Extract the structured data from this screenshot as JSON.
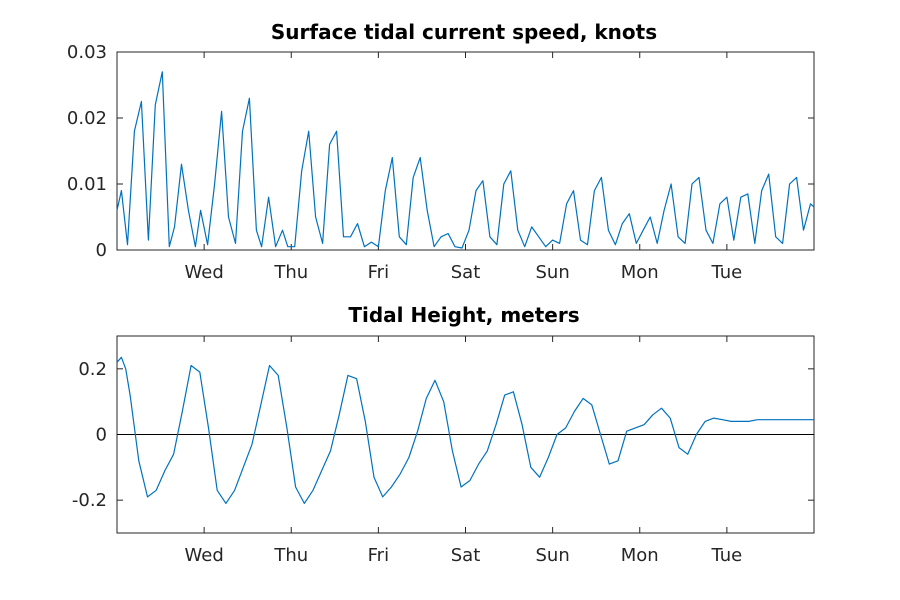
{
  "chart_data": [
    {
      "type": "line",
      "title": "Surface tidal current speed, knots",
      "xlabel": "",
      "ylabel": "",
      "x_ticks": [
        "Wed",
        "Thu",
        "Fri",
        "Sat",
        "Sun",
        "Mon",
        "Tue"
      ],
      "y_ticks": [
        "0",
        "0.01",
        "0.02",
        "0.03"
      ],
      "xlim": [
        0,
        8
      ],
      "ylim": [
        0,
        0.03
      ],
      "grid": false,
      "reference_line": null,
      "series": [
        {
          "color": "#0072BD",
          "x": [
            0,
            0.05,
            0.12,
            0.2,
            0.28,
            0.36,
            0.44,
            0.52,
            0.6,
            0.66,
            0.74,
            0.82,
            0.9,
            0.96,
            1.04,
            1.12,
            1.2,
            1.28,
            1.36,
            1.44,
            1.52,
            1.6,
            1.66,
            1.74,
            1.82,
            1.9,
            1.96,
            2.04,
            2.12,
            2.2,
            2.28,
            2.36,
            2.44,
            2.52,
            2.6,
            2.68,
            2.76,
            2.84,
            2.92,
            3.0,
            3.08,
            3.16,
            3.24,
            3.32,
            3.4,
            3.48,
            3.56,
            3.64,
            3.72,
            3.8,
            3.88,
            3.96,
            4.04,
            4.12,
            4.2,
            4.28,
            4.36,
            4.44,
            4.52,
            4.6,
            4.68,
            4.76,
            4.84,
            4.92,
            5.0,
            5.08,
            5.16,
            5.24,
            5.32,
            5.4,
            5.48,
            5.56,
            5.64,
            5.72,
            5.8,
            5.88,
            5.96,
            6.04,
            6.12,
            6.2,
            6.28,
            6.36,
            6.44,
            6.52,
            6.6,
            6.68,
            6.76,
            6.84,
            6.92,
            7.0,
            7.08,
            7.16,
            7.24,
            7.32,
            7.4,
            7.48,
            7.56,
            7.64,
            7.72,
            7.8,
            7.88,
            7.96,
            8.0
          ],
          "y": [
            0.006,
            0.009,
            0.0008,
            0.018,
            0.0225,
            0.0015,
            0.022,
            0.027,
            0.0005,
            0.0035,
            0.013,
            0.006,
            0.0005,
            0.006,
            0.0008,
            0.01,
            0.021,
            0.005,
            0.001,
            0.018,
            0.023,
            0.003,
            0.0005,
            0.008,
            0.0005,
            0.003,
            0.0005,
            0.0005,
            0.012,
            0.018,
            0.005,
            0.001,
            0.016,
            0.018,
            0.002,
            0.002,
            0.004,
            0.0005,
            0.0012,
            0.0005,
            0.009,
            0.014,
            0.002,
            0.0008,
            0.011,
            0.014,
            0.006,
            0.0005,
            0.002,
            0.0025,
            0.0005,
            0.0003,
            0.003,
            0.009,
            0.0105,
            0.002,
            0.0008,
            0.01,
            0.012,
            0.003,
            0.0005,
            0.0035,
            0.002,
            0.0005,
            0.0015,
            0.001,
            0.007,
            0.009,
            0.0015,
            0.0008,
            0.009,
            0.011,
            0.003,
            0.0008,
            0.004,
            0.0055,
            0.001,
            0.003,
            0.005,
            0.001,
            0.006,
            0.01,
            0.002,
            0.001,
            0.01,
            0.011,
            0.003,
            0.001,
            0.007,
            0.008,
            0.0015,
            0.008,
            0.0085,
            0.001,
            0.009,
            0.0115,
            0.002,
            0.001,
            0.01,
            0.011,
            0.003,
            0.007,
            0.0065
          ]
        }
      ]
    },
    {
      "type": "line",
      "title": "Tidal Height, meters",
      "xlabel": "",
      "ylabel": "",
      "x_ticks": [
        "Wed",
        "Thu",
        "Fri",
        "Sat",
        "Sun",
        "Mon",
        "Tue"
      ],
      "y_ticks": [
        "-0.2",
        "0",
        "0.2"
      ],
      "xlim": [
        0,
        8
      ],
      "ylim": [
        -0.3,
        0.3
      ],
      "grid": false,
      "reference_line": 0,
      "series": [
        {
          "color": "#0072BD",
          "x": [
            0,
            0.05,
            0.1,
            0.15,
            0.25,
            0.35,
            0.45,
            0.55,
            0.65,
            0.75,
            0.85,
            0.95,
            1.05,
            1.15,
            1.25,
            1.35,
            1.45,
            1.55,
            1.65,
            1.75,
            1.85,
            1.95,
            2.05,
            2.15,
            2.25,
            2.35,
            2.45,
            2.55,
            2.65,
            2.75,
            2.85,
            2.95,
            3.05,
            3.15,
            3.25,
            3.35,
            3.45,
            3.55,
            3.65,
            3.75,
            3.85,
            3.95,
            4.05,
            4.15,
            4.25,
            4.35,
            4.45,
            4.55,
            4.65,
            4.75,
            4.85,
            4.95,
            5.05,
            5.15,
            5.25,
            5.35,
            5.45,
            5.55,
            5.65,
            5.75,
            5.85,
            5.95,
            6.05,
            6.15,
            6.25,
            6.35,
            6.45,
            6.55,
            6.65,
            6.75,
            6.85,
            6.95,
            7.05,
            7.15,
            7.25,
            7.35,
            7.45,
            7.55,
            7.65,
            7.75,
            7.85,
            7.95,
            8.0
          ],
          "y": [
            0.22,
            0.235,
            0.2,
            0.12,
            -0.08,
            -0.19,
            -0.17,
            -0.11,
            -0.06,
            0.07,
            0.21,
            0.19,
            0.02,
            -0.17,
            -0.21,
            -0.17,
            -0.1,
            -0.03,
            0.09,
            0.21,
            0.18,
            0.02,
            -0.16,
            -0.21,
            -0.17,
            -0.11,
            -0.05,
            0.06,
            0.18,
            0.17,
            0.04,
            -0.13,
            -0.19,
            -0.16,
            -0.12,
            -0.07,
            0.01,
            0.11,
            0.165,
            0.1,
            -0.05,
            -0.16,
            -0.14,
            -0.09,
            -0.05,
            0.03,
            0.12,
            0.13,
            0.03,
            -0.1,
            -0.13,
            -0.07,
            0.0,
            0.02,
            0.07,
            0.11,
            0.09,
            0.0,
            -0.09,
            -0.08,
            0.01,
            0.02,
            0.03,
            0.06,
            0.08,
            0.05,
            -0.04,
            -0.06,
            0.0,
            0.04,
            0.05,
            0.045,
            0.04,
            0.04,
            0.04,
            0.045,
            0.045,
            0.045,
            0.045,
            0.045,
            0.045,
            0.045,
            0.045
          ]
        }
      ]
    }
  ]
}
